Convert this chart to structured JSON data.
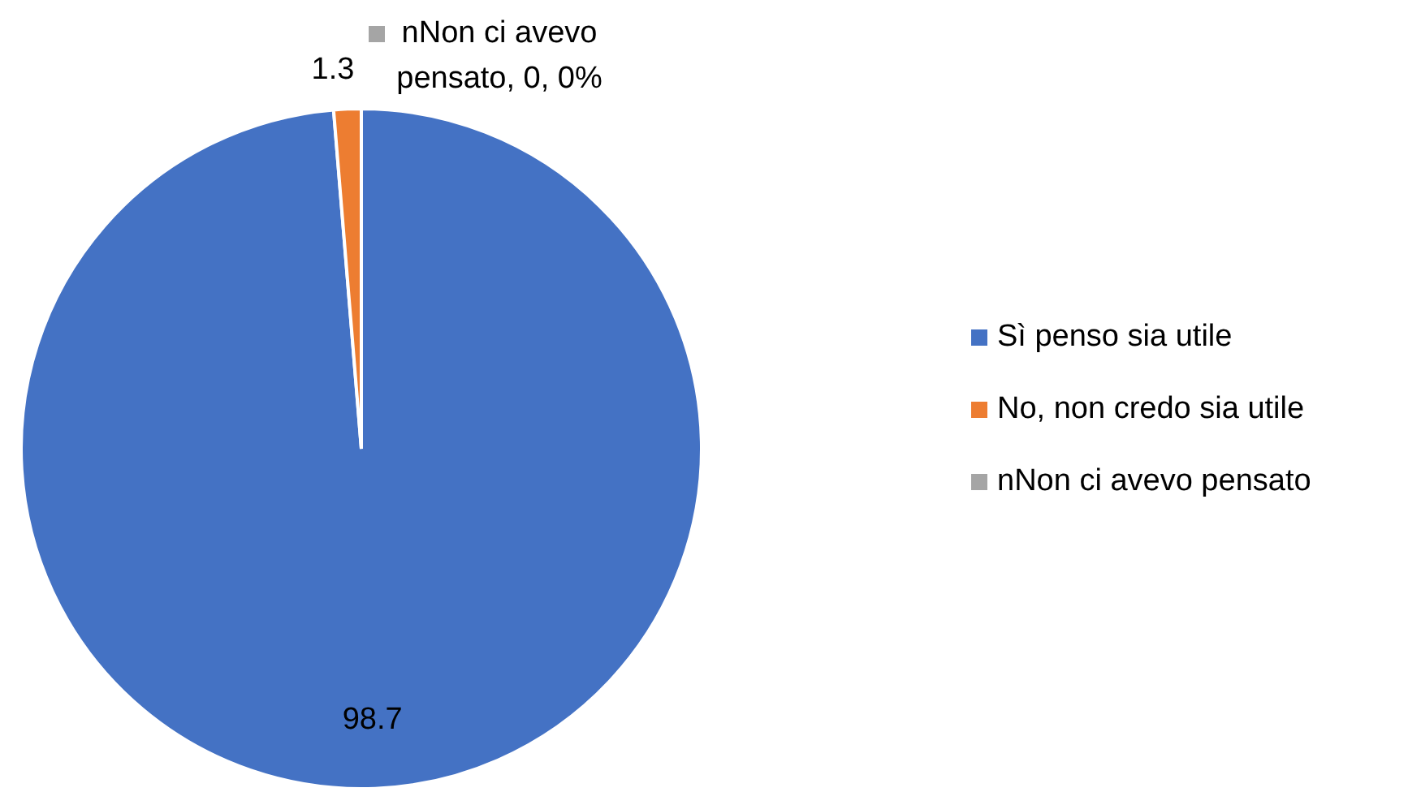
{
  "chart_data": {
    "type": "pie",
    "categories": [
      "Sì penso sia utile",
      "No, non credo sia utile",
      "nNon ci avevo pensato"
    ],
    "values": [
      98.7,
      1.3,
      0
    ],
    "colors": [
      "#4472c4",
      "#ed7d31",
      "#a5a5a5"
    ],
    "value_labels": [
      "98.7",
      "1.3",
      "nNon ci avevo pensato, 0, 0%"
    ],
    "legend": "right"
  }
}
